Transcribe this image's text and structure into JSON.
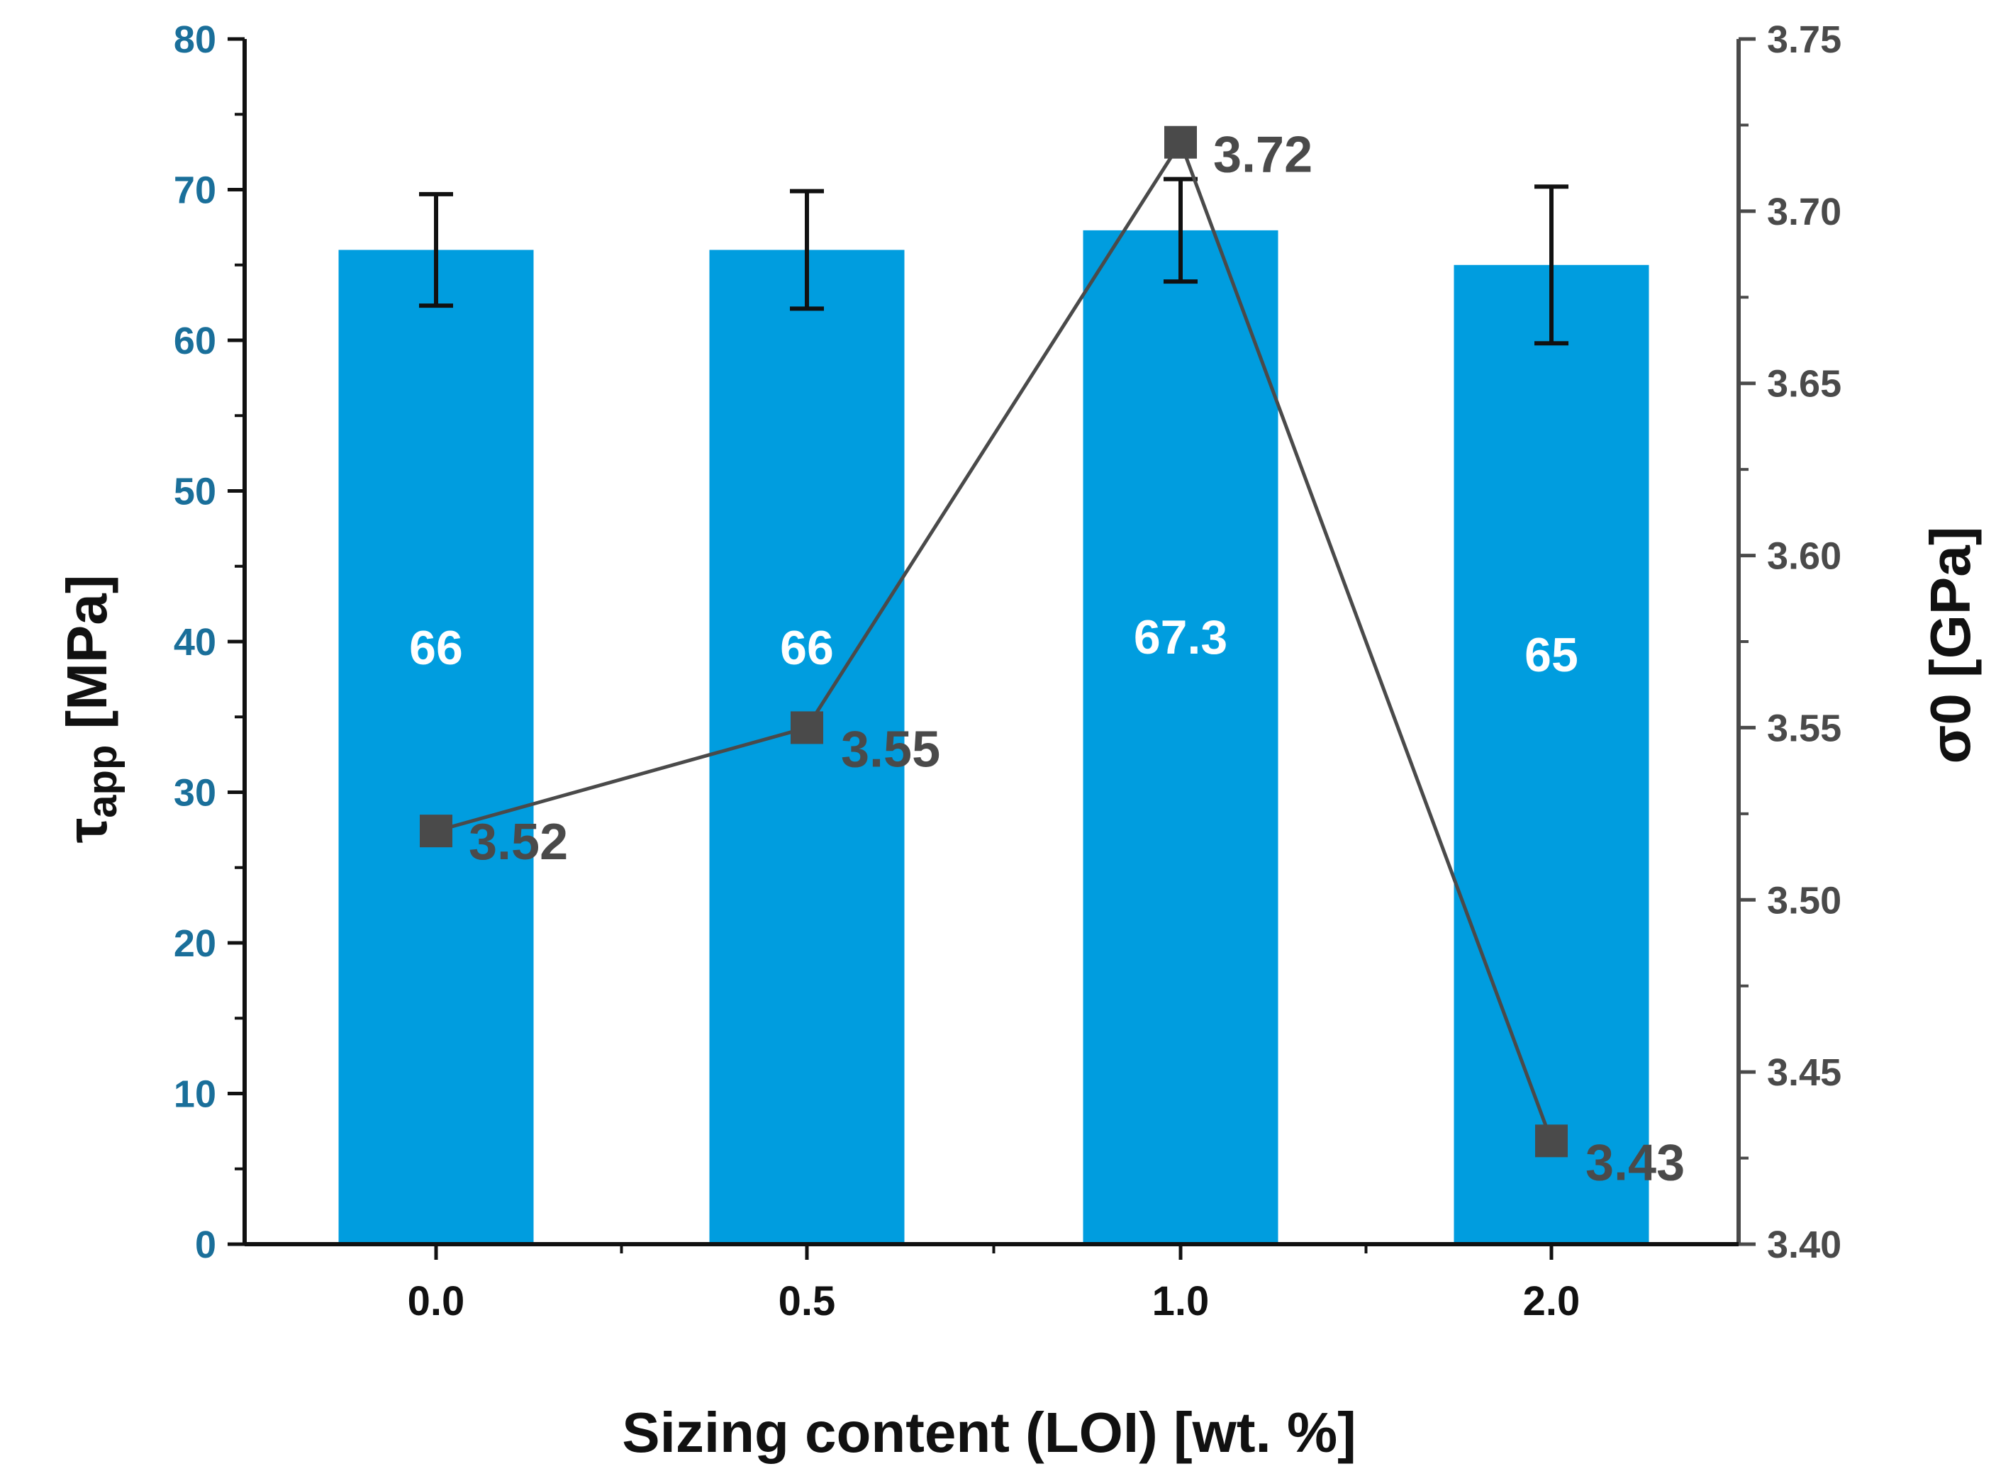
{
  "chart_data": {
    "type": "bar",
    "categories": [
      "0.0",
      "0.5",
      "1.0",
      "2.0"
    ],
    "xlabel": "Sizing content (LOI) [wt. %]",
    "series": [
      {
        "name": "τapp",
        "axis": "left",
        "kind": "bar",
        "values": [
          66,
          66,
          67.3,
          65
        ],
        "labels": [
          "66",
          "66",
          "67.3",
          "65"
        ],
        "error": [
          3.7,
          3.9,
          3.4,
          5.2
        ],
        "color": "#009ddf"
      },
      {
        "name": "σ0",
        "axis": "right",
        "kind": "line",
        "values": [
          3.52,
          3.55,
          3.72,
          3.43
        ],
        "labels": [
          "3.52",
          "3.55",
          "3.72",
          "3.43"
        ],
        "color": "#4a4a4a"
      }
    ],
    "y_left": {
      "label_main": "τ",
      "label_sub": "app",
      "label_rest": " [MPa]",
      "ylim": [
        0,
        80
      ],
      "ticks": [
        "0",
        "10",
        "20",
        "30",
        "40",
        "50",
        "60",
        "70",
        "80"
      ],
      "color": "#1a6f9a"
    },
    "y_right": {
      "label_main": "σ",
      "label_sub": "0",
      "label_rest": " [GPa]",
      "ylim": [
        3.4,
        3.75
      ],
      "ticks": [
        "3.40",
        "3.45",
        "3.50",
        "3.55",
        "3.60",
        "3.65",
        "3.70",
        "3.75"
      ],
      "color": "#4a4a4a"
    }
  }
}
